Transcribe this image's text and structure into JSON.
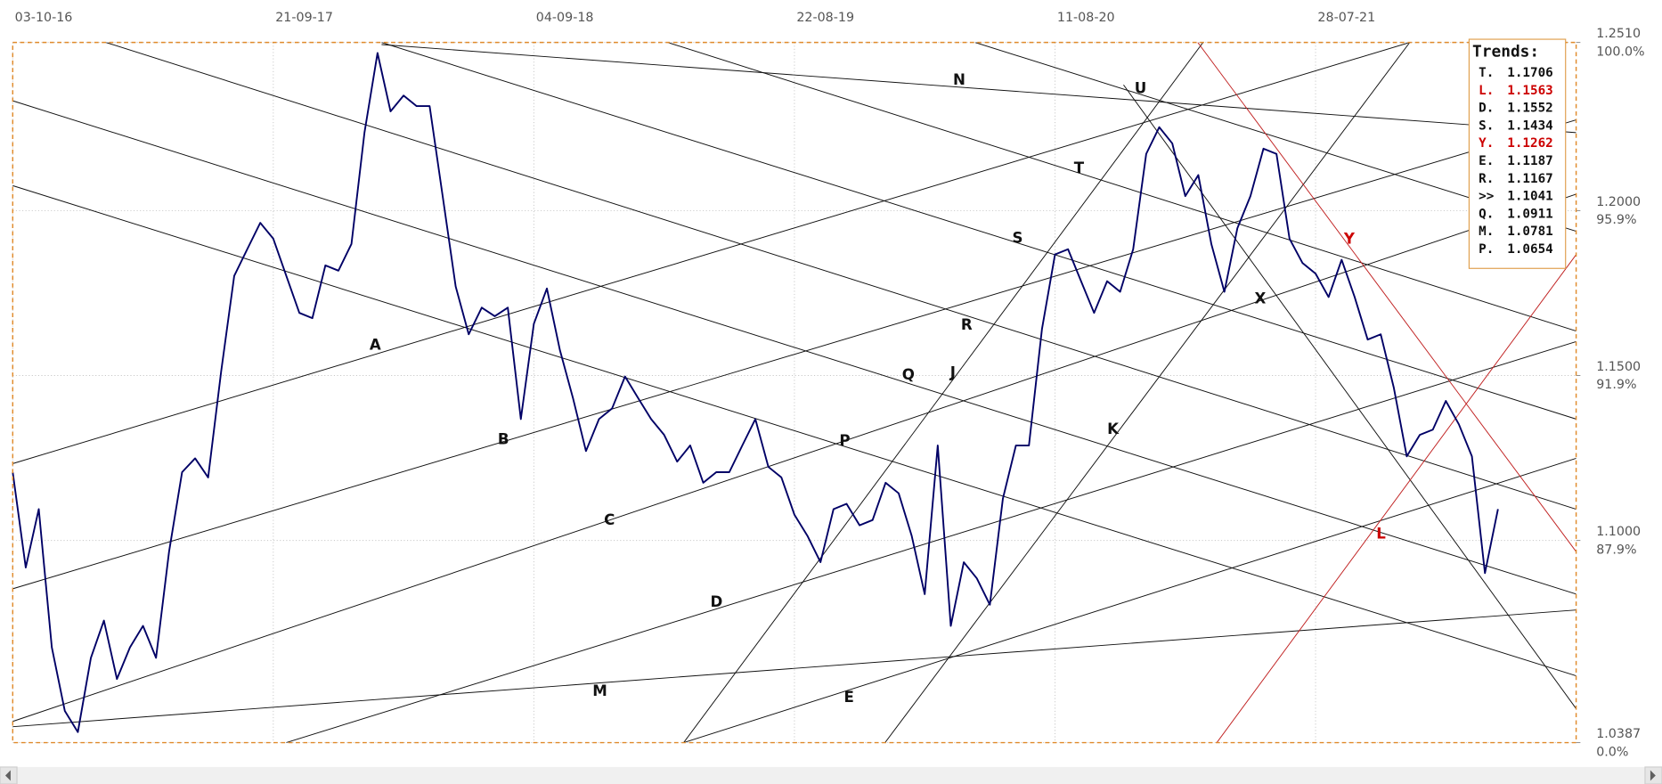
{
  "chart_data": {
    "type": "line",
    "categories": [
      "03-10-16",
      null,
      null,
      null,
      null,
      null,
      null,
      null,
      null,
      null,
      null,
      null,
      null,
      null,
      null,
      null,
      null,
      null,
      null,
      null,
      "21-09-17",
      null,
      null,
      null,
      null,
      null,
      null,
      null,
      null,
      null,
      null,
      null,
      null,
      null,
      null,
      null,
      null,
      null,
      null,
      null,
      "04-09-18",
      null,
      null,
      null,
      null,
      null,
      null,
      null,
      null,
      null,
      null,
      null,
      null,
      null,
      null,
      null,
      null,
      null,
      null,
      null,
      "22-08-19",
      null,
      null,
      null,
      null,
      null,
      null,
      null,
      null,
      null,
      null,
      null,
      null,
      null,
      null,
      null,
      null,
      null,
      null,
      null,
      "11-08-20",
      null,
      null,
      null,
      null,
      null,
      null,
      null,
      null,
      null,
      null,
      null,
      null,
      null,
      null,
      null,
      null,
      null,
      null,
      null,
      "28-07-21",
      null,
      null,
      null,
      null,
      null,
      null,
      null,
      null,
      null,
      null,
      null,
      null,
      null,
      null,
      null,
      null,
      null,
      null,
      null,
      null
    ],
    "series": [
      {
        "color": "#000066",
        "values": [
          1.1207,
          1.0918,
          1.1095,
          1.0676,
          1.0483,
          1.0419,
          1.0644,
          1.0757,
          1.058,
          1.0676,
          1.0741,
          1.0644,
          1.0966,
          1.1207,
          1.1249,
          1.1191,
          1.1513,
          1.1802,
          1.1883,
          1.1963,
          1.1915,
          1.1802,
          1.169,
          1.1674,
          1.1834,
          1.1818,
          1.1899,
          1.2237,
          1.2478,
          1.2301,
          1.2349,
          1.2317,
          1.2317,
          1.2044,
          1.177,
          1.1625,
          1.1706,
          1.168,
          1.1706,
          1.1368,
          1.1657,
          1.1764,
          1.1577,
          1.1432,
          1.1271,
          1.1368,
          1.14,
          1.1497,
          1.1432,
          1.1368,
          1.132,
          1.1239,
          1.1288,
          1.1175,
          1.1207,
          1.1207,
          1.1288,
          1.1368,
          1.1223,
          1.1191,
          1.1078,
          1.1014,
          1.0934,
          1.1095,
          1.1111,
          1.1046,
          1.1062,
          1.1175,
          1.1143,
          1.1014,
          1.0837,
          1.1288,
          1.0741,
          1.0934,
          1.0885,
          1.0805,
          1.1127,
          1.1288,
          1.1288,
          1.1641,
          1.1867,
          1.1883,
          1.1786,
          1.169,
          1.1786,
          1.1754,
          1.1883,
          1.2172,
          1.2253,
          1.2204,
          1.2044,
          1.2108,
          1.1899,
          1.1754,
          1.1947,
          1.2044,
          1.2188,
          1.2172,
          1.1915,
          1.1841,
          1.1809,
          1.1738,
          1.1851,
          1.1738,
          1.1609,
          1.1625,
          1.1464,
          1.1255,
          1.132,
          1.1336,
          1.1423,
          1.1352,
          1.1255,
          1.0901,
          1.1095,
          null,
          null,
          null,
          null,
          null,
          null
        ]
      }
    ],
    "ylim": [
      1.0387,
      1.251
    ],
    "yticks": [
      {
        "value": 1.0387,
        "label": "1.0387"
      },
      {
        "value": 1.1,
        "label": "1.1000"
      },
      {
        "value": 1.15,
        "label": "1.1500"
      },
      {
        "value": 1.2,
        "label": "1.2000"
      },
      {
        "value": 1.251,
        "label": "1.2510"
      }
    ],
    "ytick_percent_labels": [
      "0.0%",
      "87.9%",
      "91.9%",
      "95.9%",
      "100.0%"
    ],
    "grid": true,
    "annotations": [
      {
        "text": "A",
        "color": "#111111"
      },
      {
        "text": "B",
        "color": "#111111"
      },
      {
        "text": "C",
        "color": "#111111"
      },
      {
        "text": "D",
        "color": "#111111"
      },
      {
        "text": "E",
        "color": "#111111"
      },
      {
        "text": "M",
        "color": "#111111"
      },
      {
        "text": "P",
        "color": "#111111"
      },
      {
        "text": "Q",
        "color": "#111111"
      },
      {
        "text": "J",
        "color": "#111111"
      },
      {
        "text": "R",
        "color": "#111111"
      },
      {
        "text": "K",
        "color": "#111111"
      },
      {
        "text": "S",
        "color": "#111111"
      },
      {
        "text": "T",
        "color": "#111111"
      },
      {
        "text": "N",
        "color": "#111111"
      },
      {
        "text": "U",
        "color": "#111111"
      },
      {
        "text": "X",
        "color": "#111111"
      },
      {
        "text": "Y",
        "color": "#cc0000"
      },
      {
        "text": "L",
        "color": "#cc0000"
      }
    ],
    "trends": {
      "title": "Trends:",
      "items": [
        {
          "label": "T.",
          "value": 1.1706,
          "color": "#111111"
        },
        {
          "label": "L.",
          "value": 1.1563,
          "color": "#cc0000"
        },
        {
          "label": "D.",
          "value": 1.1552,
          "color": "#111111"
        },
        {
          "label": "S.",
          "value": 1.1434,
          "color": "#111111"
        },
        {
          "label": "Y.",
          "value": 1.1262,
          "color": "#cc0000"
        },
        {
          "label": "E.",
          "value": 1.1187,
          "color": "#111111"
        },
        {
          "label": "R.",
          "value": 1.1167,
          "color": "#111111"
        },
        {
          "label": ">>",
          "value": 1.1041,
          "color": "#111111"
        },
        {
          "label": "Q.",
          "value": 1.0911,
          "color": "#111111"
        },
        {
          "label": "M.",
          "value": 1.0781,
          "color": "#111111"
        },
        {
          "label": "P.",
          "value": 1.0654,
          "color": "#111111"
        }
      ]
    }
  }
}
